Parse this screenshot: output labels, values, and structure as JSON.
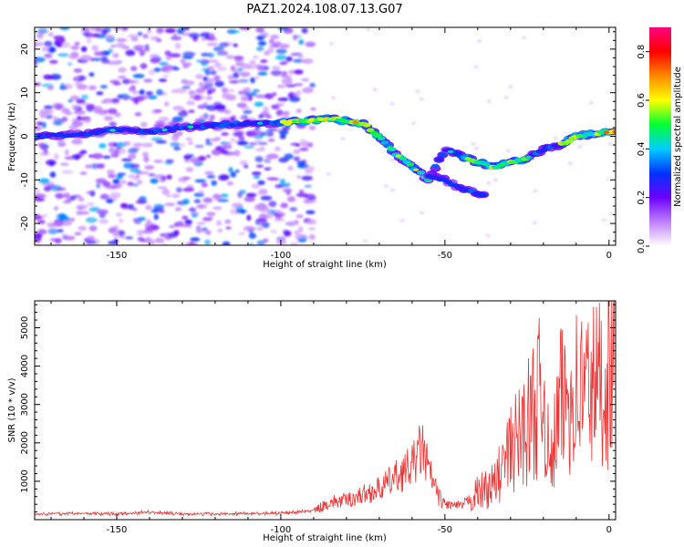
{
  "title": "PAZ1.2024.108.07.13.G07",
  "chart_data": [
    {
      "type": "heatmap",
      "xlabel": "Height of straight line (km)",
      "ylabel": "Frequency (Hz)",
      "xlim": [
        -175,
        2
      ],
      "ylim": [
        -25,
        25
      ],
      "xticks": [
        -150,
        -100,
        -50,
        0
      ],
      "yticks": [
        -20,
        -10,
        0,
        10,
        20
      ],
      "colorbar": {
        "label": "Normalized spectral amplitude",
        "range": [
          0,
          0.9
        ],
        "ticks": [
          0.0,
          0.2,
          0.4,
          0.6,
          0.8
        ],
        "colormap": "white-purple-blue-cyan-green-yellow-red-pink",
        "colors": [
          "#ffffff",
          "#c080ff",
          "#6a00ff",
          "#0033ff",
          "#00ccff",
          "#00ff33",
          "#ffff00",
          "#ff8800",
          "#ff0000",
          "#ff0080"
        ]
      },
      "ridge": {
        "x": [
          -175,
          -160,
          -150,
          -140,
          -130,
          -120,
          -110,
          -100,
          -95,
          -90,
          -85,
          -80,
          -75,
          -70,
          -65,
          -60,
          -55,
          -50,
          -45,
          -40,
          -35,
          -30,
          -25,
          -20,
          -15,
          -10,
          -5,
          0,
          2
        ],
        "y": [
          0,
          0.5,
          1.5,
          1.0,
          2.0,
          2.5,
          3.0,
          3.0,
          3.5,
          3.8,
          4.0,
          3.5,
          3.0,
          0,
          -4,
          -7,
          -10,
          -3,
          -4.5,
          -6,
          -7,
          -6,
          -5,
          -3,
          -2,
          0,
          0.5,
          1.0,
          1.0
        ]
      },
      "branch": {
        "x": [
          -55,
          -50,
          -45,
          -40,
          -37
        ],
        "y": [
          -9,
          -10,
          -12,
          -13,
          -14
        ]
      },
      "noise_region_x": [
        -175,
        -90
      ]
    },
    {
      "type": "line",
      "xlabel": "Height of straight line (km)",
      "ylabel": "SNR (10 * v/v)",
      "xlim": [
        -175,
        2
      ],
      "ylim": [
        0,
        5700
      ],
      "xticks": [
        -150,
        -100,
        -50,
        0
      ],
      "yticks": [
        1000,
        2000,
        3000,
        4000,
        5000
      ],
      "series": [
        {
          "color": "#ee3333",
          "x": [
            -175,
            -160,
            -150,
            -140,
            -130,
            -120,
            -110,
            -100,
            -90,
            -85,
            -80,
            -75,
            -70,
            -65,
            -60,
            -57,
            -55,
            -52,
            -50,
            -45,
            -40,
            -35,
            -30,
            -25,
            -20,
            -18,
            -15,
            -10,
            -5,
            0,
            2
          ],
          "y": [
            150,
            160,
            150,
            200,
            150,
            150,
            160,
            170,
            230,
            450,
            500,
            650,
            800,
            1100,
            1400,
            1900,
            1300,
            600,
            400,
            350,
            700,
            900,
            1800,
            2500,
            3400,
            1200,
            3000,
            3400,
            3500,
            3700,
            5500
          ]
        }
      ]
    }
  ]
}
